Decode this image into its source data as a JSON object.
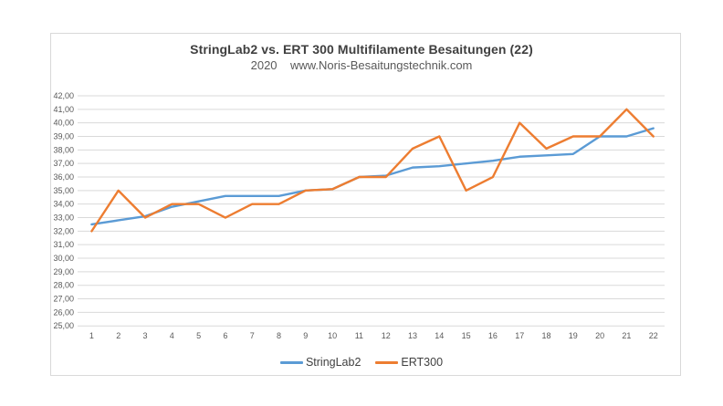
{
  "colors": {
    "background": "#ffffff",
    "panel_border": "#d9d9d9",
    "gridline": "#d9d9d9",
    "tick_text": "#595959",
    "title_text": "#3f3f3f",
    "subtitle_text": "#595959",
    "series_blue": "#5B9BD5",
    "series_orange": "#ED7D31"
  },
  "chart_data": {
    "type": "line",
    "title": "StringLab2 vs. ERT 300 Multifilamente Besaitungen (22)",
    "subtitle": "2020    www.Noris-Besaitungstechnik.com",
    "x": [
      1,
      2,
      3,
      4,
      5,
      6,
      7,
      8,
      9,
      10,
      11,
      12,
      13,
      14,
      15,
      16,
      17,
      18,
      19,
      20,
      21,
      22
    ],
    "xtick_labels": [
      "1",
      "2",
      "3",
      "4",
      "5",
      "6",
      "7",
      "8",
      "9",
      "10",
      "11",
      "12",
      "13",
      "14",
      "15",
      "16",
      "17",
      "18",
      "19",
      "20",
      "21",
      "22"
    ],
    "ytick_labels": [
      "42,00",
      "41,00",
      "40,00",
      "39,00",
      "38,00",
      "37,00",
      "36,00",
      "35,00",
      "34,00",
      "33,00",
      "32,00",
      "31,00",
      "30,00",
      "29,00",
      "28,00",
      "27,00",
      "26,00",
      "25,00"
    ],
    "ylim": [
      25,
      42
    ],
    "ytick_step": 1,
    "grid": true,
    "legend_position": "bottom",
    "xlabel": "",
    "ylabel": "",
    "series": [
      {
        "name": "StringLab2",
        "color": "#5B9BD5",
        "values": [
          32.5,
          32.8,
          33.1,
          33.8,
          34.2,
          34.6,
          34.6,
          34.6,
          35.0,
          35.1,
          36.0,
          36.1,
          36.7,
          36.8,
          37.0,
          37.2,
          37.5,
          37.6,
          37.7,
          39.0,
          39.0,
          39.6
        ]
      },
      {
        "name": "ERT300",
        "color": "#ED7D31",
        "values": [
          32.0,
          35.0,
          33.0,
          34.0,
          34.0,
          33.0,
          34.0,
          34.0,
          35.0,
          35.1,
          36.0,
          36.0,
          38.1,
          39.0,
          35.0,
          36.0,
          40.0,
          38.1,
          39.0,
          39.0,
          41.0,
          39.0
        ]
      }
    ]
  }
}
